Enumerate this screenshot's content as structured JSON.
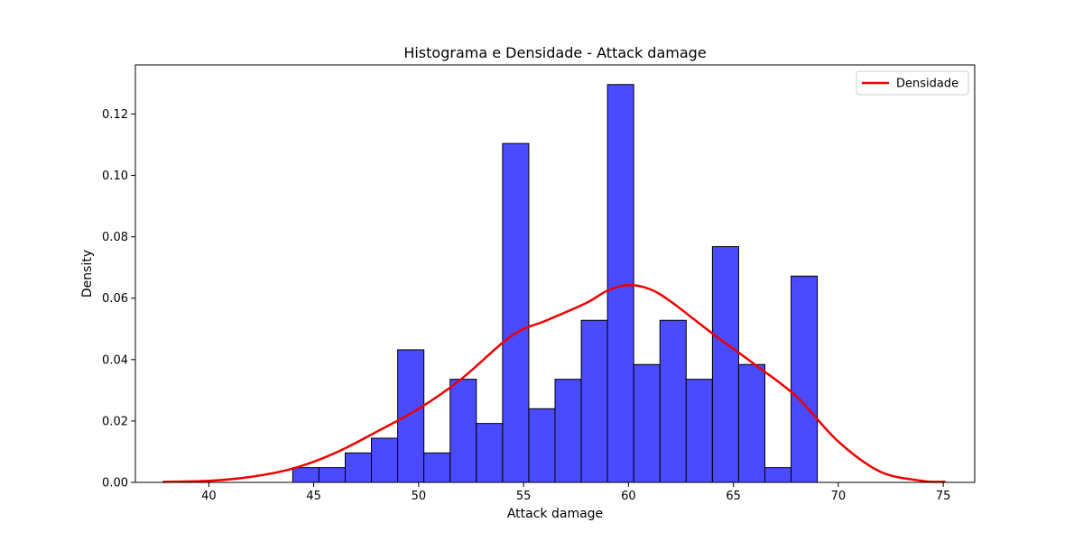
{
  "chart_data": {
    "type": "bar",
    "title": "Histograma e Densidade - Attack damage",
    "xlabel": "Attack damage",
    "ylabel": "Density",
    "xlim": [
      36.5,
      76.5
    ],
    "ylim": [
      0,
      0.136
    ],
    "xticks": [
      40,
      45,
      50,
      55,
      60,
      65,
      70,
      75
    ],
    "xtick_labels": [
      "40",
      "45",
      "50",
      "55",
      "60",
      "65",
      "70",
      "75"
    ],
    "yticks": [
      0.0,
      0.02,
      0.04,
      0.06,
      0.08,
      0.1,
      0.12
    ],
    "ytick_labels": [
      "0.00",
      "0.02",
      "0.04",
      "0.06",
      "0.08",
      "0.10",
      "0.12"
    ],
    "grid": false,
    "legend_position": "top-right",
    "histogram": {
      "bin_edges": [
        44.0,
        45.25,
        46.5,
        47.75,
        49.0,
        50.25,
        51.5,
        52.75,
        54.0,
        55.25,
        56.5,
        57.75,
        59.0,
        60.25,
        61.5,
        62.75,
        64.0,
        65.25,
        66.5,
        67.75,
        69.0
      ],
      "values": [
        0.0048,
        0.0048,
        0.0096,
        0.0144,
        0.0432,
        0.0096,
        0.0336,
        0.0192,
        0.1104,
        0.024,
        0.0336,
        0.0528,
        0.1296,
        0.0384,
        0.0528,
        0.0336,
        0.0768,
        0.0384,
        0.0048,
        0.0672
      ],
      "fill_color": "#4a4aff",
      "edge_color": "#000000"
    },
    "series": [
      {
        "name": "Densidade",
        "color": "#ee0000",
        "x": [
          37.8,
          40,
          42,
          44,
          46,
          48,
          50,
          52,
          54,
          55,
          56,
          58,
          59,
          60,
          61,
          62,
          64,
          66,
          68,
          70,
          72,
          74,
          75.1
        ],
        "y": [
          0.0002,
          0.0005,
          0.0018,
          0.0045,
          0.0095,
          0.0165,
          0.024,
          0.0335,
          0.0455,
          0.05,
          0.0525,
          0.0585,
          0.0625,
          0.0643,
          0.063,
          0.059,
          0.0485,
          0.0385,
          0.028,
          0.0133,
          0.0035,
          0.0005,
          0.0002
        ]
      }
    ]
  }
}
